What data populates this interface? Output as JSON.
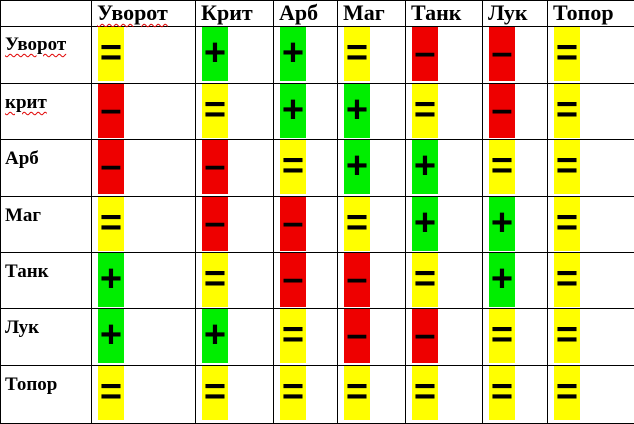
{
  "columns": [
    "Уворот",
    "Крит",
    "Арб",
    "Маг",
    "Танк",
    "Лук",
    "Топор"
  ],
  "rows": [
    {
      "label": "Уворот",
      "marks": [
        "=",
        "+",
        "+",
        "=",
        "-",
        "-",
        "="
      ]
    },
    {
      "label": "крит",
      "marks": [
        "-",
        "=",
        "+",
        "+",
        "=",
        "-",
        "="
      ]
    },
    {
      "label": "Арб",
      "marks": [
        "-",
        "-",
        "=",
        "+",
        "+",
        "=",
        "="
      ]
    },
    {
      "label": "Маг",
      "marks": [
        "=",
        "-",
        "-",
        "=",
        "+",
        "+",
        "="
      ]
    },
    {
      "label": "Танк",
      "marks": [
        "+",
        "=",
        "-",
        "-",
        "=",
        "+",
        "="
      ]
    },
    {
      "label": "Лук",
      "marks": [
        "+",
        "+",
        "=",
        "-",
        "-",
        "=",
        "="
      ]
    },
    {
      "label": "Топор",
      "marks": [
        "=",
        "=",
        "=",
        "=",
        "=",
        "=",
        "="
      ]
    }
  ],
  "legend_colors": {
    "=": "#ffff00",
    "+": "#00ee00",
    "-": "#ee0000"
  }
}
